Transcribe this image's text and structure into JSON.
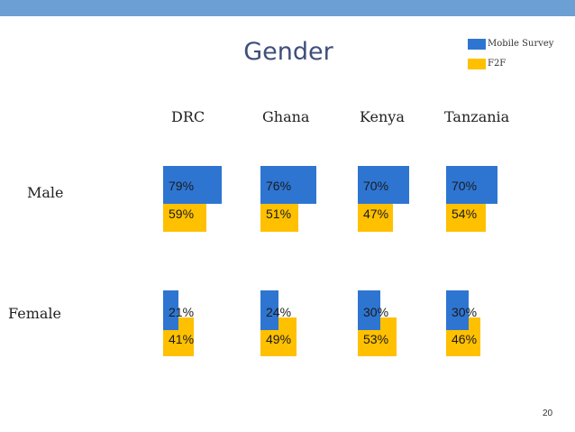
{
  "slide": {
    "title": "Gender",
    "page_number": "20"
  },
  "colors": {
    "mobile": "#2e75d2",
    "f2f": "#ffc000",
    "topbar": "#6c9fd3",
    "title": "#3f4f7a"
  },
  "chart_data": {
    "type": "bar",
    "title": "Gender",
    "categories": [
      "DRC",
      "Ghana",
      "Kenya",
      "Tanzania"
    ],
    "rows": [
      "Male",
      "Female"
    ],
    "series": [
      {
        "name": "Mobile Survey",
        "color": "#2e75d2",
        "values": {
          "Male": [
            79,
            76,
            70,
            70
          ],
          "Female": [
            21,
            24,
            30,
            30
          ]
        }
      },
      {
        "name": "F2F",
        "color": "#ffc000",
        "values": {
          "Male": [
            59,
            51,
            47,
            54
          ],
          "Female": [
            41,
            49,
            53,
            46
          ]
        }
      }
    ],
    "value_suffix": "%",
    "legend_position": "top-right"
  }
}
